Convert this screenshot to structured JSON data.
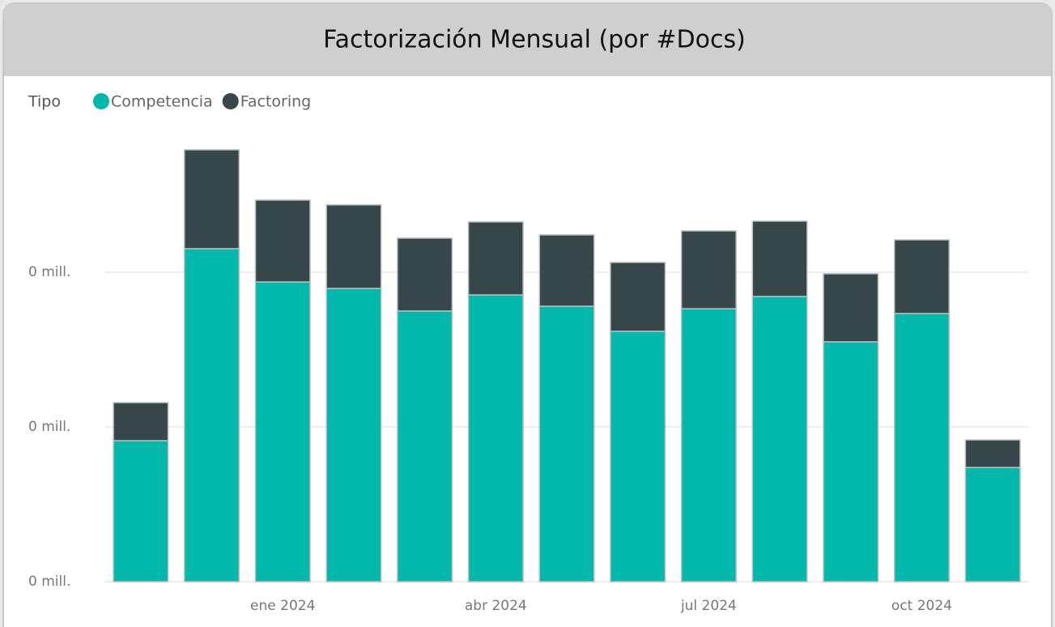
{
  "chart_data": {
    "type": "stacked_bar",
    "title": "Factorización Mensual (por #Docs)",
    "legend_title": "Tipo",
    "legend": "top-left",
    "grid": true,
    "categories": [
      null,
      null,
      "ene 2024",
      null,
      null,
      "abr 2024",
      null,
      null,
      "jul 2024",
      null,
      null,
      "oct 2024",
      null
    ],
    "series": [
      {
        "name": "Competencia",
        "color": "#01b8aa",
        "values": [
          91100,
          215200,
          193700,
          189500,
          174900,
          185300,
          178000,
          161800,
          176400,
          184300,
          155000,
          173300,
          73800
        ]
      },
      {
        "name": "Factoring",
        "color": "#374649",
        "values": [
          24600,
          63900,
          52900,
          54000,
          47100,
          47200,
          46100,
          44500,
          50300,
          48700,
          44000,
          47600,
          17800
        ]
      }
    ],
    "ylim": [
      0,
      300000
    ],
    "yticks": [
      {
        "value": 0,
        "label": "0 mill."
      },
      {
        "value": 100000,
        "label": "0 mill."
      },
      {
        "value": 200000,
        "label": "0 mill."
      }
    ]
  }
}
